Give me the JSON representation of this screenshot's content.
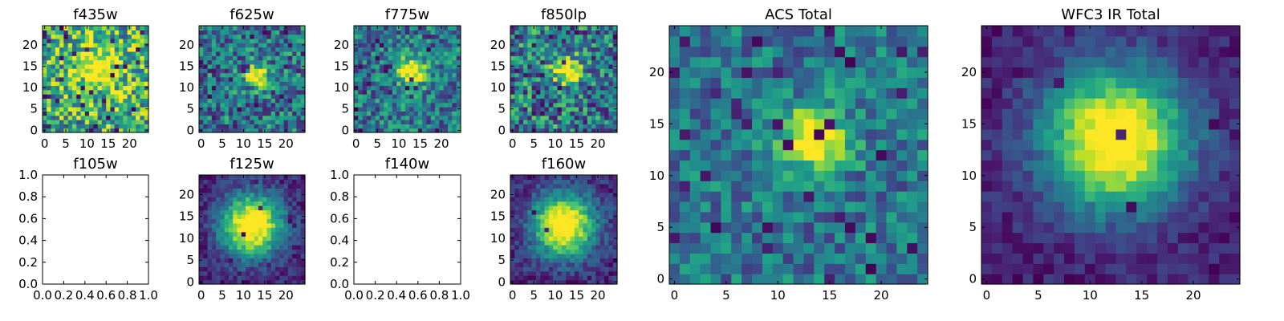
{
  "figure": {
    "colormap": "viridis",
    "grid": false,
    "legend": "none"
  },
  "chart_data": [
    {
      "type": "heatmap",
      "title": "f435w",
      "empty": false,
      "xticks": [
        "0",
        "5",
        "10",
        "15",
        "20"
      ],
      "yticks": [
        "0",
        "5",
        "10",
        "15",
        "20"
      ],
      "xlim": [
        -0.5,
        24.5
      ],
      "ylim": [
        -0.5,
        24.5
      ],
      "grid_size": [
        25,
        25
      ],
      "source_center": [
        13,
        15
      ],
      "source_sigma": 3.6,
      "noise": 0.38,
      "base": 0.62,
      "seed": 11,
      "low_outliers": 0.05
    },
    {
      "type": "heatmap",
      "title": "f625w",
      "empty": false,
      "xticks": [
        "0",
        "5",
        "10",
        "15",
        "20"
      ],
      "yticks": [
        "0",
        "5",
        "10",
        "15",
        "20"
      ],
      "xlim": [
        -0.5,
        24.5
      ],
      "ylim": [
        -0.5,
        24.5
      ],
      "grid_size": [
        25,
        25
      ],
      "source_center": [
        13,
        13
      ],
      "source_sigma": 1.8,
      "noise": 0.3,
      "base": 0.4,
      "seed": 23,
      "low_outliers": 0.04
    },
    {
      "type": "heatmap",
      "title": "f775w",
      "empty": false,
      "xticks": [
        "0",
        "5",
        "10",
        "15",
        "20"
      ],
      "yticks": [
        "0",
        "5",
        "10",
        "15",
        "20"
      ],
      "xlim": [
        -0.5,
        24.5
      ],
      "ylim": [
        -0.5,
        24.5
      ],
      "grid_size": [
        25,
        25
      ],
      "source_center": [
        13,
        14
      ],
      "source_sigma": 2.3,
      "noise": 0.28,
      "base": 0.4,
      "seed": 37,
      "low_outliers": 0.04
    },
    {
      "type": "heatmap",
      "title": "f850lp",
      "empty": false,
      "xticks": [
        "0",
        "5",
        "10",
        "15",
        "20"
      ],
      "yticks": [
        "0",
        "5",
        "10",
        "15",
        "20"
      ],
      "xlim": [
        -0.5,
        24.5
      ],
      "ylim": [
        -0.5,
        24.5
      ],
      "grid_size": [
        25,
        25
      ],
      "source_center": [
        13,
        14
      ],
      "source_sigma": 2.2,
      "noise": 0.36,
      "base": 0.42,
      "seed": 53,
      "low_outliers": 0.05
    },
    {
      "type": "heatmap",
      "title": "ACS Total",
      "empty": false,
      "xticks": [
        "0",
        "5",
        "10",
        "15",
        "20"
      ],
      "yticks": [
        "0",
        "5",
        "10",
        "15",
        "20"
      ],
      "xlim": [
        -0.5,
        24.5
      ],
      "ylim": [
        -0.5,
        24.5
      ],
      "grid_size": [
        25,
        25
      ],
      "source_center": [
        13.5,
        13.5
      ],
      "source_sigma": 2.2,
      "noise": 0.22,
      "base": 0.4,
      "seed": 71,
      "low_outliers": 0.06
    },
    {
      "type": "heatmap",
      "title": "f105w",
      "empty": true,
      "xticks": [
        "0.0",
        "0.2",
        "0.4",
        "0.6",
        "0.8",
        "1.0"
      ],
      "yticks": [
        "0.0",
        "0.2",
        "0.4",
        "0.6",
        "0.8",
        "1.0"
      ],
      "xlim": [
        0,
        1
      ],
      "ylim": [
        0,
        1
      ]
    },
    {
      "type": "heatmap",
      "title": "f125w",
      "empty": false,
      "xticks": [
        "0",
        "5",
        "10",
        "15",
        "20"
      ],
      "yticks": [
        "0",
        "5",
        "10",
        "15",
        "20"
      ],
      "xlim": [
        -0.5,
        24.5
      ],
      "ylim": [
        -0.5,
        24.5
      ],
      "grid_size": [
        25,
        25
      ],
      "source_center": [
        12,
        13
      ],
      "source_sigma": 5.0,
      "noise": 0.14,
      "base": 0.1,
      "seed": 89,
      "low_outliers": 0.02
    },
    {
      "type": "heatmap",
      "title": "f140w",
      "empty": true,
      "xticks": [
        "0.0",
        "0.2",
        "0.4",
        "0.6",
        "0.8",
        "1.0"
      ],
      "yticks": [
        "0.0",
        "0.2",
        "0.4",
        "0.6",
        "0.8",
        "1.0"
      ],
      "xlim": [
        0,
        1
      ],
      "ylim": [
        0,
        1
      ]
    },
    {
      "type": "heatmap",
      "title": "f160w",
      "empty": false,
      "xticks": [
        "0",
        "5",
        "10",
        "15",
        "20"
      ],
      "yticks": [
        "0",
        "5",
        "10",
        "15",
        "20"
      ],
      "xlim": [
        -0.5,
        24.5
      ],
      "ylim": [
        -0.5,
        24.5
      ],
      "grid_size": [
        25,
        25
      ],
      "source_center": [
        12,
        13
      ],
      "source_sigma": 5.0,
      "noise": 0.14,
      "base": 0.12,
      "seed": 97,
      "low_outliers": 0.02
    },
    {
      "type": "heatmap",
      "title": "WFC3 IR Total",
      "empty": false,
      "xticks": [
        "0",
        "5",
        "10",
        "15",
        "20"
      ],
      "yticks": [
        "0",
        "5",
        "10",
        "15",
        "20"
      ],
      "xlim": [
        -0.5,
        24.5
      ],
      "ylim": [
        -0.5,
        24.5
      ],
      "grid_size": [
        25,
        25
      ],
      "source_center": [
        12.5,
        13.5
      ],
      "source_sigma": 4.8,
      "noise": 0.1,
      "base": 0.08,
      "seed": 113,
      "low_outliers": 0.02
    }
  ]
}
